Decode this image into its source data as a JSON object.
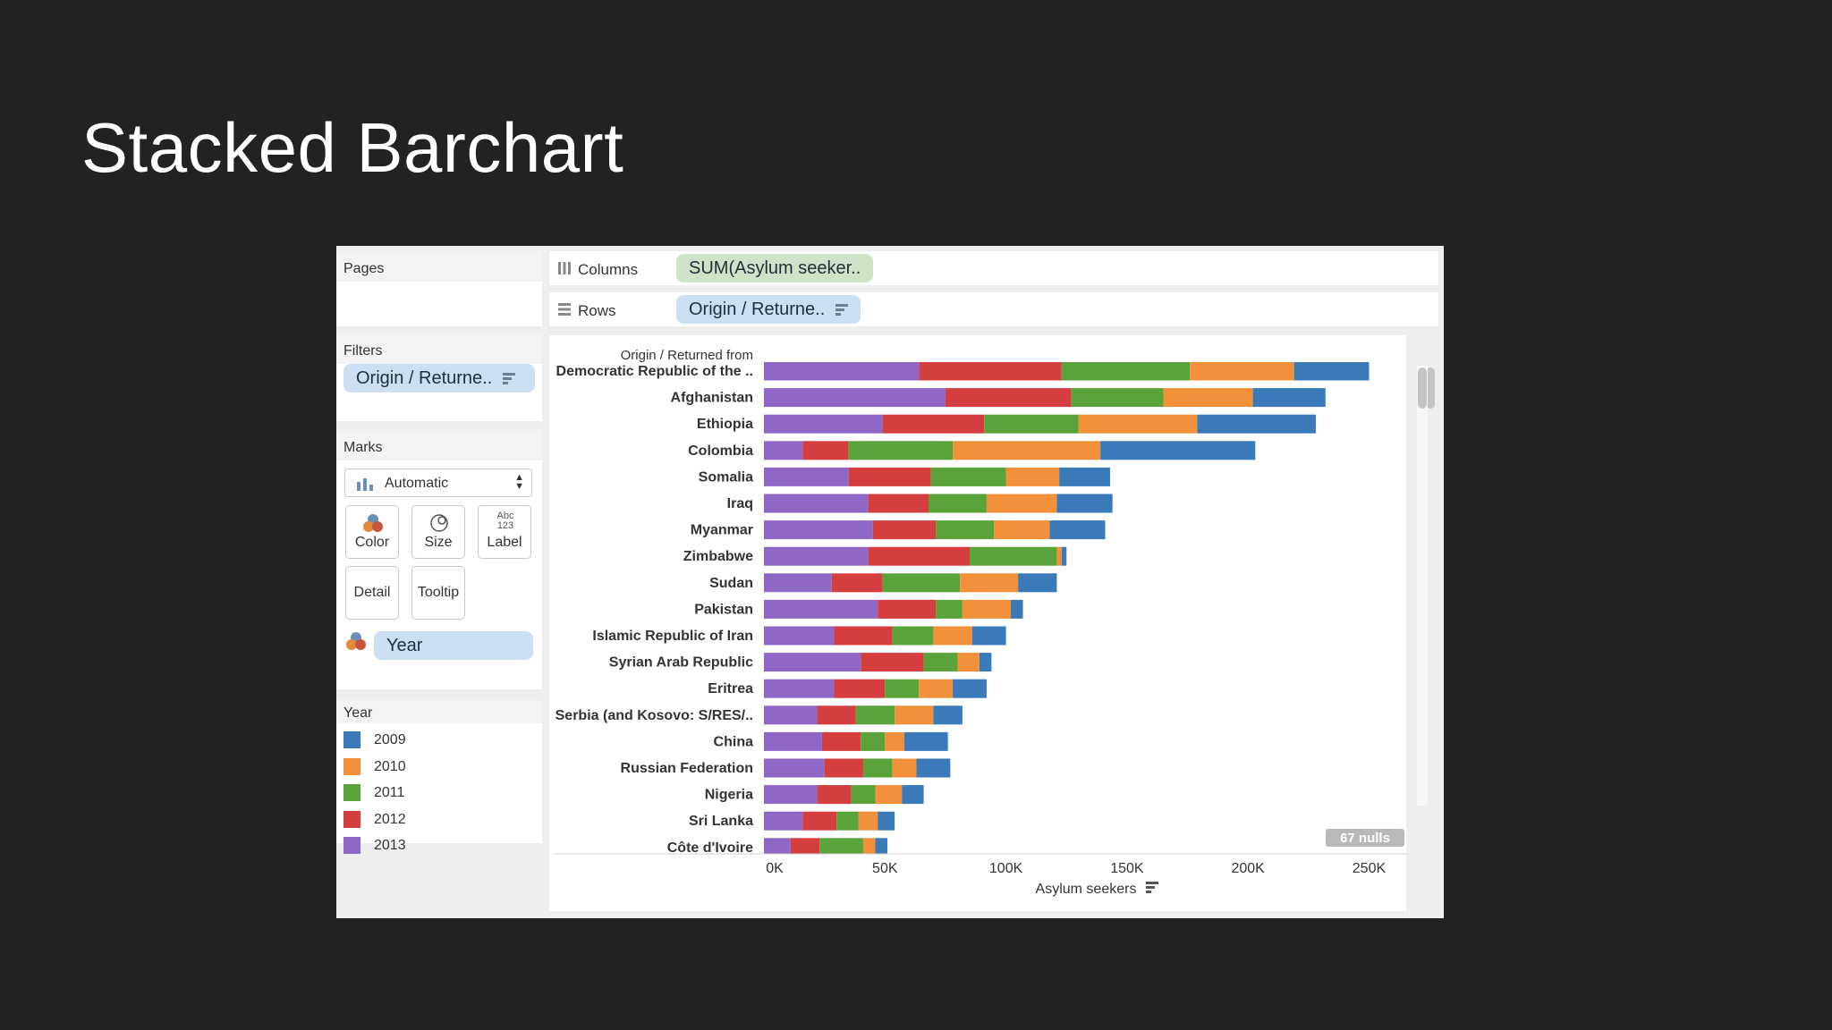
{
  "slide": {
    "title": "Stacked Barchart"
  },
  "tableau": {
    "pages_title": "Pages",
    "filters_title": "Filters",
    "filter_pill": "Origin / Returne..",
    "columns_label": "Columns",
    "columns_pill": "SUM(Asylum seeker..",
    "rows_label": "Rows",
    "rows_pill": "Origin / Returne..",
    "marks_title": "Marks",
    "mark_type": "Automatic",
    "mark_buttons": {
      "color": "Color",
      "size": "Size",
      "label": "Label",
      "label_icon": "Abc 123",
      "detail": "Detail",
      "tooltip": "Tooltip"
    },
    "year_pill": "Year",
    "legend_title": "Year",
    "nulls_badge": "67 nulls"
  },
  "colors": {
    "2009": "#3a7ab9",
    "2010": "#f2913a",
    "2011": "#5aa23a",
    "2012": "#d53e3e",
    "2013": "#8f67c6"
  },
  "chart_data": {
    "type": "bar",
    "orientation": "horizontal",
    "stacked": true,
    "row_header": "Origin / Returned from",
    "xlabel": "Asylum seekers",
    "xlim": [
      0,
      255000
    ],
    "x_ticks": [
      "0K",
      "50K",
      "100K",
      "150K",
      "200K",
      "250K"
    ],
    "x_tick_values": [
      0,
      50000,
      100000,
      150000,
      200000,
      250000
    ],
    "legend_placement": "left",
    "categories": [
      "Democratic Republic of the ..",
      "Afghanistan",
      "Ethiopia",
      "Colombia",
      "Somalia",
      "Iraq",
      "Myanmar",
      "Zimbabwe",
      "Sudan",
      "Pakistan",
      "Islamic Republic of Iran",
      "Syrian Arab Republic",
      "Eritrea",
      "Serbia (and Kosovo: S/RES/..",
      "China",
      "Russian Federation",
      "Nigeria",
      "Sri Lanka",
      "Côte d'Ivoire"
    ],
    "series": [
      {
        "name": "2013",
        "values": [
          64000,
          75000,
          49000,
          16000,
          35000,
          43000,
          45000,
          43000,
          28000,
          47000,
          29000,
          40000,
          29000,
          22000,
          24000,
          25000,
          22000,
          16000,
          11000
        ]
      },
      {
        "name": "2012",
        "values": [
          59000,
          52000,
          42000,
          19000,
          34000,
          25000,
          26000,
          42000,
          21000,
          24000,
          24000,
          26000,
          21000,
          16000,
          16000,
          16000,
          14000,
          14000,
          12000
        ]
      },
      {
        "name": "2011",
        "values": [
          53000,
          38000,
          39000,
          43000,
          31000,
          24000,
          24000,
          36000,
          32000,
          11000,
          17000,
          14000,
          14000,
          16000,
          10000,
          12000,
          10000,
          9000,
          18000
        ]
      },
      {
        "name": "2010",
        "values": [
          43000,
          37000,
          49000,
          61000,
          22000,
          29000,
          23000,
          2000,
          24000,
          20000,
          16000,
          9000,
          14000,
          16000,
          8000,
          10000,
          11000,
          8000,
          5000
        ]
      },
      {
        "name": "2009",
        "values": [
          31000,
          30000,
          49000,
          64000,
          21000,
          23000,
          23000,
          2000,
          16000,
          5000,
          14000,
          5000,
          14000,
          12000,
          18000,
          14000,
          9000,
          7000,
          5000
        ]
      }
    ]
  }
}
